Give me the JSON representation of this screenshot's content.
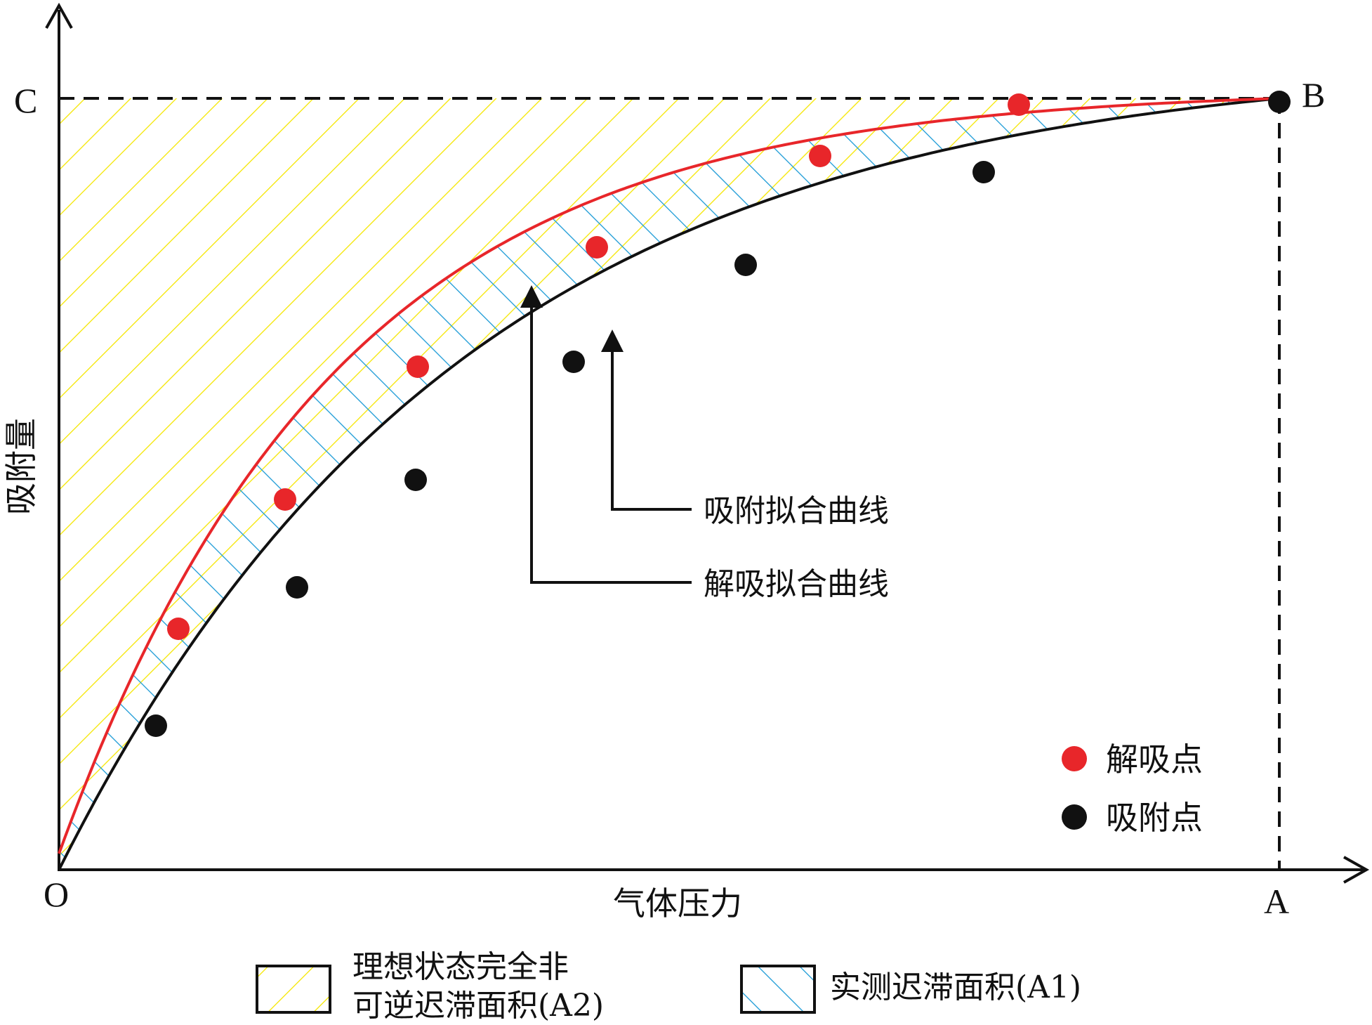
{
  "diagram": {
    "axis_labels": {
      "y": "吸附量",
      "x": "气体压力"
    },
    "point_labels": {
      "origin": "O",
      "a": "A",
      "b": "B",
      "c": "C"
    },
    "annotations": {
      "adsorption_curve": "吸附拟合曲线",
      "desorption_curve": "解吸拟合曲线"
    },
    "legend_points": {
      "desorption": "解吸点",
      "adsorption": "吸附点"
    },
    "legend_areas": {
      "ideal_line1": "理想状态完全非",
      "ideal_line2": "可逆迟滞面积(A2)",
      "measured": "实测迟滞面积(A1)"
    },
    "colors": {
      "desorption": "#e8262a",
      "adsorption": "#111111",
      "ideal_hatch": "#f5e600",
      "measured_hatch": "#1a9ad6"
    }
  }
}
